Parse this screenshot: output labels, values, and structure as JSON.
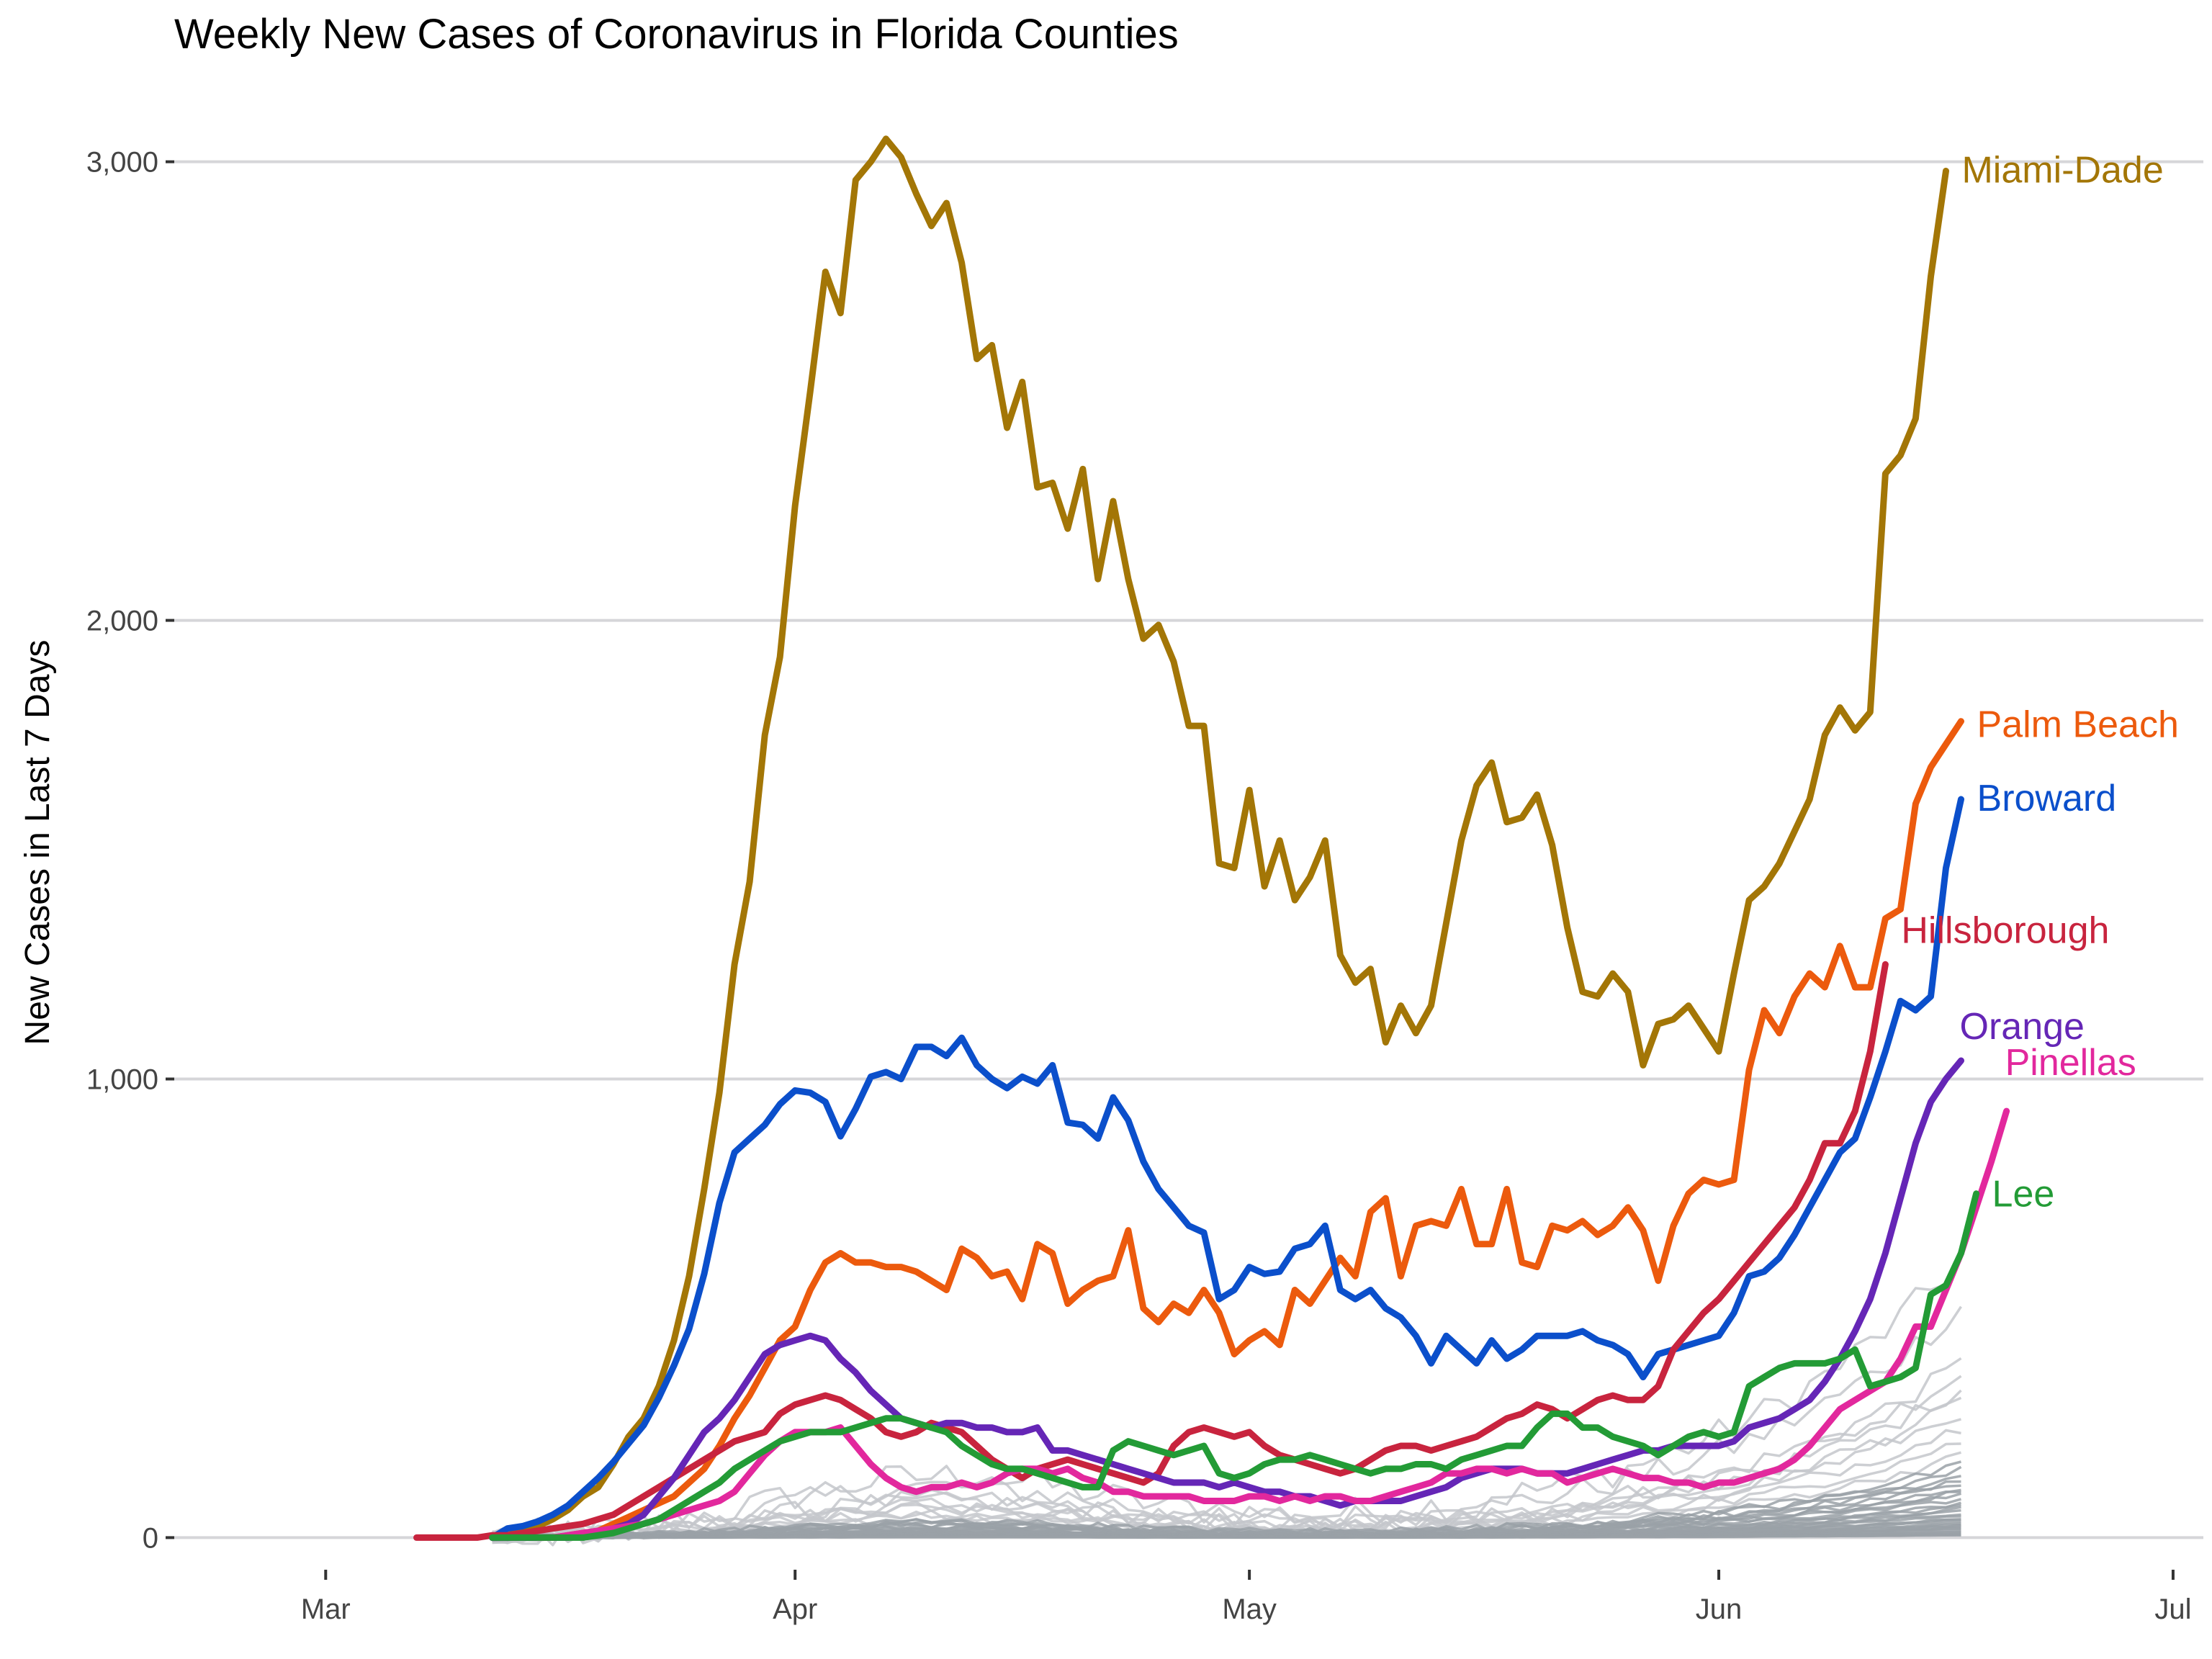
{
  "chart_data": {
    "type": "line",
    "title": "Weekly New Cases of Coronavirus in Florida Counties",
    "xlabel": "",
    "ylabel": "New Cases in Last 7 Days",
    "ylim": [
      -70,
      3180
    ],
    "xlim": [
      "2020-02-20",
      "2020-07-03"
    ],
    "x_ticks": [
      {
        "date": "2020-03-01",
        "label": "Mar"
      },
      {
        "date": "2020-04-01",
        "label": "Apr"
      },
      {
        "date": "2020-05-01",
        "label": "May"
      },
      {
        "date": "2020-06-01",
        "label": "Jun"
      },
      {
        "date": "2020-07-01",
        "label": "Jul"
      }
    ],
    "y_ticks": [
      {
        "value": 0,
        "label": "0"
      },
      {
        "value": 1000,
        "label": "1,000"
      },
      {
        "value": 2000,
        "label": "2,000"
      },
      {
        "value": 3000,
        "label": "3,000"
      }
    ],
    "grid": "horizontal",
    "background_series_note": "",
    "series": [
      {
        "name": "Miami-Dade",
        "color": "#a37606",
        "start_date": "2020-03-12",
        "values": [
          0,
          5,
          15,
          25,
          40,
          60,
          90,
          110,
          160,
          220,
          260,
          330,
          430,
          570,
          760,
          970,
          1250,
          1430,
          1750,
          1920,
          2250,
          2500,
          2760,
          2670,
          2960,
          3000,
          3050,
          3010,
          2930,
          2860,
          2910,
          2780,
          2570,
          2600,
          2420,
          2520,
          2290,
          2300,
          2200,
          2330,
          2090,
          2260,
          2090,
          1960,
          1990,
          1910,
          1770,
          1770,
          1470,
          1460,
          1630,
          1420,
          1520,
          1390,
          1440,
          1520,
          1270,
          1210,
          1240,
          1080,
          1160,
          1100,
          1160,
          1340,
          1520,
          1640,
          1690,
          1560,
          1570,
          1620,
          1510,
          1330,
          1190,
          1180,
          1230,
          1190,
          1030,
          1120,
          1130,
          1160,
          1110,
          1060,
          1230,
          1390,
          1420,
          1470,
          1540,
          1610,
          1750,
          1810,
          1760,
          1800,
          2320,
          2360,
          2440,
          2750,
          2980
        ]
      },
      {
        "name": "Palm Beach",
        "color": "#ec5a0d",
        "start_date": "2020-03-12",
        "values": [
          0,
          0,
          0,
          0,
          0,
          5,
          10,
          15,
          30,
          45,
          60,
          75,
          90,
          120,
          150,
          200,
          260,
          310,
          370,
          430,
          460,
          540,
          600,
          620,
          600,
          600,
          590,
          590,
          580,
          560,
          540,
          630,
          610,
          570,
          580,
          520,
          640,
          620,
          510,
          540,
          560,
          570,
          670,
          500,
          470,
          510,
          490,
          540,
          490,
          400,
          430,
          450,
          420,
          540,
          510,
          560,
          610,
          570,
          710,
          740,
          570,
          680,
          690,
          680,
          760,
          640,
          640,
          760,
          600,
          590,
          680,
          670,
          690,
          660,
          680,
          720,
          670,
          560,
          680,
          750,
          780,
          770,
          780,
          1020,
          1150,
          1100,
          1180,
          1230,
          1200,
          1290,
          1200,
          1200,
          1350,
          1370,
          1600,
          1680,
          1730,
          1780
        ]
      },
      {
        "name": "Broward",
        "color": "#0b4fcb",
        "start_date": "2020-03-12",
        "values": [
          0,
          20,
          25,
          35,
          50,
          70,
          100,
          130,
          165,
          205,
          245,
          305,
          375,
          455,
          575,
          730,
          840,
          870,
          900,
          945,
          975,
          970,
          950,
          875,
          935,
          1005,
          1015,
          1000,
          1070,
          1070,
          1050,
          1090,
          1030,
          1000,
          980,
          1005,
          990,
          1030,
          905,
          900,
          870,
          960,
          910,
          820,
          760,
          720,
          680,
          665,
          520,
          540,
          590,
          575,
          580,
          630,
          640,
          680,
          540,
          520,
          540,
          500,
          480,
          440,
          380,
          440,
          410,
          380,
          430,
          390,
          410,
          440,
          440,
          440,
          450,
          430,
          420,
          400,
          350,
          400,
          410,
          420,
          430,
          440,
          490,
          570,
          580,
          610,
          660,
          720,
          780,
          840,
          870,
          960,
          1060,
          1170,
          1150,
          1180,
          1460,
          1610
        ]
      },
      {
        "name": "Hillsborough",
        "color": "#c8243e",
        "start_date": "2020-03-07",
        "values": [
          0,
          0,
          0,
          0,
          0,
          5,
          5,
          10,
          15,
          20,
          25,
          30,
          40,
          50,
          70,
          90,
          110,
          130,
          150,
          170,
          190,
          210,
          220,
          230,
          270,
          290,
          300,
          310,
          300,
          280,
          260,
          230,
          220,
          230,
          250,
          240,
          230,
          200,
          170,
          150,
          130,
          150,
          160,
          170,
          160,
          150,
          140,
          130,
          120,
          140,
          200,
          230,
          240,
          230,
          220,
          230,
          200,
          180,
          170,
          160,
          150,
          140,
          150,
          170,
          190,
          200,
          200,
          190,
          200,
          210,
          220,
          240,
          260,
          270,
          290,
          280,
          260,
          280,
          300,
          310,
          300,
          300,
          330,
          410,
          450,
          490,
          520,
          560,
          600,
          640,
          680,
          720,
          780,
          860,
          860,
          930,
          1060,
          1250
        ]
      },
      {
        "name": "Orange",
        "color": "#6526b6",
        "start_date": "2020-03-12",
        "values": [
          0,
          0,
          0,
          0,
          0,
          0,
          5,
          10,
          20,
          30,
          50,
          90,
          130,
          180,
          230,
          260,
          300,
          350,
          400,
          420,
          430,
          440,
          430,
          390,
          360,
          320,
          290,
          260,
          250,
          240,
          250,
          250,
          240,
          240,
          230,
          230,
          240,
          190,
          190,
          180,
          170,
          160,
          150,
          140,
          130,
          120,
          120,
          120,
          110,
          120,
          110,
          100,
          100,
          90,
          90,
          80,
          70,
          80,
          80,
          80,
          80,
          90,
          100,
          110,
          130,
          140,
          150,
          150,
          150,
          140,
          140,
          140,
          150,
          160,
          170,
          180,
          190,
          190,
          200,
          200,
          200,
          200,
          210,
          240,
          250,
          260,
          280,
          300,
          340,
          390,
          450,
          520,
          620,
          740,
          860,
          950,
          1000,
          1040
        ]
      },
      {
        "name": "Pinellas",
        "color": "#e2289d",
        "start_date": "2020-03-15",
        "values": [
          0,
          0,
          5,
          10,
          15,
          20,
          25,
          30,
          40,
          50,
          60,
          70,
          80,
          100,
          140,
          180,
          210,
          230,
          230,
          230,
          240,
          200,
          160,
          130,
          110,
          100,
          110,
          110,
          120,
          110,
          120,
          140,
          150,
          150,
          140,
          150,
          130,
          120,
          100,
          100,
          90,
          90,
          90,
          90,
          80,
          80,
          80,
          90,
          90,
          80,
          90,
          80,
          90,
          90,
          80,
          80,
          90,
          100,
          110,
          120,
          140,
          140,
          150,
          150,
          140,
          150,
          140,
          140,
          120,
          130,
          140,
          150,
          140,
          130,
          130,
          120,
          120,
          110,
          120,
          120,
          130,
          140,
          150,
          170,
          200,
          240,
          280,
          300,
          320,
          340,
          390,
          460,
          460,
          540,
          620,
          720,
          820,
          930
        ]
      },
      {
        "name": "Lee",
        "color": "#239b36",
        "start_date": "2020-03-12",
        "values": [
          0,
          0,
          0,
          0,
          0,
          0,
          0,
          5,
          10,
          20,
          30,
          40,
          60,
          80,
          100,
          120,
          150,
          170,
          190,
          210,
          220,
          230,
          230,
          230,
          240,
          250,
          260,
          260,
          250,
          240,
          230,
          200,
          180,
          160,
          150,
          150,
          140,
          130,
          120,
          110,
          110,
          190,
          210,
          200,
          190,
          180,
          190,
          200,
          140,
          130,
          140,
          160,
          170,
          170,
          180,
          170,
          160,
          150,
          140,
          150,
          150,
          160,
          160,
          150,
          170,
          180,
          190,
          200,
          200,
          240,
          270,
          270,
          240,
          240,
          220,
          210,
          200,
          180,
          200,
          220,
          230,
          220,
          230,
          330,
          350,
          370,
          380,
          380,
          380,
          390,
          410,
          330,
          340,
          350,
          370,
          530,
          550,
          620,
          750
        ]
      }
    ]
  }
}
